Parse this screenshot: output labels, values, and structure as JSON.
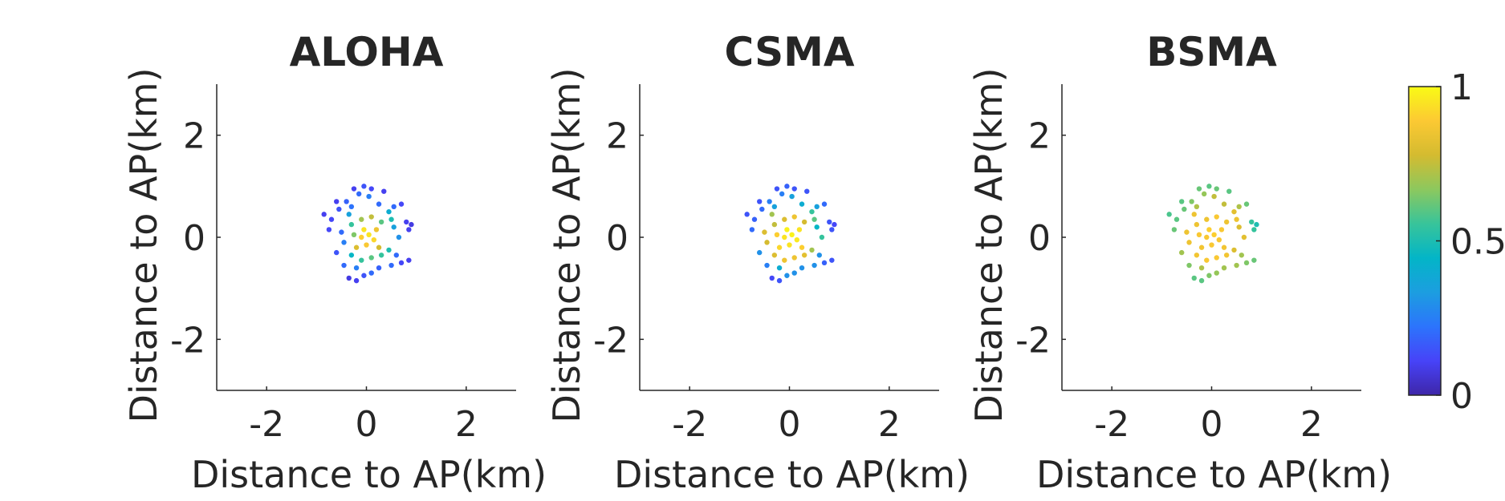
{
  "chart_data": [
    {
      "type": "scatter",
      "title": "ALOHA",
      "xlabel": "Distance to AP(km)",
      "ylabel": "Distance to AP(km)",
      "xlim": [
        -3,
        3
      ],
      "ylim": [
        -3,
        3
      ],
      "xticks": [
        "-2",
        "0",
        "2"
      ],
      "yticks": [
        "-2",
        "0",
        "2"
      ],
      "points": [
        {
          "x": -0.25,
          "y": 0.95,
          "c": 0.1
        },
        {
          "x": -0.05,
          "y": 1.0,
          "c": 0.15
        },
        {
          "x": 0.1,
          "y": 0.95,
          "c": 0.12
        },
        {
          "x": -0.15,
          "y": 0.85,
          "c": 0.2
        },
        {
          "x": 0.05,
          "y": 0.8,
          "c": 0.25
        },
        {
          "x": -0.4,
          "y": 0.7,
          "c": 0.18
        },
        {
          "x": -0.55,
          "y": 0.55,
          "c": 0.15
        },
        {
          "x": -0.85,
          "y": 0.45,
          "c": 0.1
        },
        {
          "x": -0.7,
          "y": 0.35,
          "c": 0.12
        },
        {
          "x": -0.3,
          "y": 0.6,
          "c": 0.22
        },
        {
          "x": 0.25,
          "y": 0.65,
          "c": 0.2
        },
        {
          "x": 0.55,
          "y": 0.6,
          "c": 0.2
        },
        {
          "x": 0.7,
          "y": 0.65,
          "c": 0.12
        },
        {
          "x": 0.45,
          "y": 0.5,
          "c": 0.4
        },
        {
          "x": 0.5,
          "y": 0.35,
          "c": 0.5
        },
        {
          "x": 0.55,
          "y": 0.2,
          "c": 0.35
        },
        {
          "x": 0.8,
          "y": 0.3,
          "c": 0.1
        },
        {
          "x": 0.9,
          "y": 0.25,
          "c": 0.08
        },
        {
          "x": 0.85,
          "y": 0.15,
          "c": 0.1
        },
        {
          "x": -0.1,
          "y": 0.35,
          "c": 0.7
        },
        {
          "x": 0.1,
          "y": 0.4,
          "c": 0.75
        },
        {
          "x": -0.3,
          "y": 0.25,
          "c": 0.55
        },
        {
          "x": 0.3,
          "y": 0.3,
          "c": 0.6
        },
        {
          "x": -0.05,
          "y": 0.15,
          "c": 0.95
        },
        {
          "x": 0.05,
          "y": 0.05,
          "c": 0.95
        },
        {
          "x": -0.1,
          "y": 0.0,
          "c": 0.9
        },
        {
          "x": 0.15,
          "y": -0.05,
          "c": 0.92
        },
        {
          "x": 0.0,
          "y": -0.15,
          "c": 0.88
        },
        {
          "x": -0.2,
          "y": -0.2,
          "c": 0.8
        },
        {
          "x": 0.25,
          "y": -0.2,
          "c": 0.78
        },
        {
          "x": -0.5,
          "y": 0.1,
          "c": 0.2
        },
        {
          "x": -0.45,
          "y": -0.1,
          "c": 0.25
        },
        {
          "x": -0.6,
          "y": -0.3,
          "c": 0.15
        },
        {
          "x": -0.3,
          "y": -0.35,
          "c": 0.45
        },
        {
          "x": -0.1,
          "y": -0.45,
          "c": 0.55
        },
        {
          "x": 0.1,
          "y": -0.4,
          "c": 0.6
        },
        {
          "x": 0.3,
          "y": -0.35,
          "c": 0.55
        },
        {
          "x": 0.45,
          "y": -0.25,
          "c": 0.5
        },
        {
          "x": 0.6,
          "y": -0.35,
          "c": 0.2
        },
        {
          "x": 0.7,
          "y": -0.5,
          "c": 0.12
        },
        {
          "x": 0.85,
          "y": -0.45,
          "c": 0.1
        },
        {
          "x": 0.5,
          "y": -0.55,
          "c": 0.2
        },
        {
          "x": 0.25,
          "y": -0.6,
          "c": 0.18
        },
        {
          "x": 0.1,
          "y": -0.7,
          "c": 0.2
        },
        {
          "x": -0.2,
          "y": -0.6,
          "c": 0.25
        },
        {
          "x": -0.45,
          "y": -0.55,
          "c": 0.2
        },
        {
          "x": -0.35,
          "y": -0.8,
          "c": 0.08
        },
        {
          "x": -0.2,
          "y": -0.85,
          "c": 0.1
        },
        {
          "x": -0.05,
          "y": -0.75,
          "c": 0.15
        },
        {
          "x": -0.6,
          "y": 0.7,
          "c": 0.1
        },
        {
          "x": 0.35,
          "y": 0.9,
          "c": 0.1
        },
        {
          "x": -0.75,
          "y": 0.15,
          "c": 0.12
        },
        {
          "x": 0.65,
          "y": 0.0,
          "c": 0.3
        },
        {
          "x": -0.35,
          "y": 0.45,
          "c": 0.35
        },
        {
          "x": 0.2,
          "y": 0.15,
          "c": 0.85
        },
        {
          "x": -0.25,
          "y": 0.05,
          "c": 0.65
        }
      ]
    },
    {
      "type": "scatter",
      "title": "CSMA",
      "xlabel": "Distance to AP(km)",
      "ylabel": "Distance to AP(km)",
      "xlim": [
        -3,
        3
      ],
      "ylim": [
        -3,
        3
      ],
      "xticks": [
        "-2",
        "0",
        "2"
      ],
      "yticks": [
        "-2",
        "0",
        "2"
      ],
      "points": [
        {
          "x": -0.25,
          "y": 0.95,
          "c": 0.15
        },
        {
          "x": -0.05,
          "y": 1.0,
          "c": 0.18
        },
        {
          "x": 0.1,
          "y": 0.95,
          "c": 0.15
        },
        {
          "x": -0.15,
          "y": 0.85,
          "c": 0.25
        },
        {
          "x": 0.05,
          "y": 0.8,
          "c": 0.35
        },
        {
          "x": -0.4,
          "y": 0.7,
          "c": 0.25
        },
        {
          "x": -0.55,
          "y": 0.55,
          "c": 0.2
        },
        {
          "x": -0.85,
          "y": 0.45,
          "c": 0.15
        },
        {
          "x": -0.7,
          "y": 0.35,
          "c": 0.18
        },
        {
          "x": -0.3,
          "y": 0.6,
          "c": 0.35
        },
        {
          "x": 0.25,
          "y": 0.65,
          "c": 0.4
        },
        {
          "x": 0.55,
          "y": 0.6,
          "c": 0.35
        },
        {
          "x": 0.7,
          "y": 0.65,
          "c": 0.2
        },
        {
          "x": 0.45,
          "y": 0.5,
          "c": 0.55
        },
        {
          "x": 0.5,
          "y": 0.35,
          "c": 0.6
        },
        {
          "x": 0.55,
          "y": 0.2,
          "c": 0.45
        },
        {
          "x": 0.8,
          "y": 0.3,
          "c": 0.15
        },
        {
          "x": 0.9,
          "y": 0.25,
          "c": 0.12
        },
        {
          "x": 0.85,
          "y": 0.15,
          "c": 0.15
        },
        {
          "x": -0.1,
          "y": 0.35,
          "c": 0.8
        },
        {
          "x": 0.1,
          "y": 0.4,
          "c": 0.85
        },
        {
          "x": -0.3,
          "y": 0.25,
          "c": 0.75
        },
        {
          "x": 0.3,
          "y": 0.3,
          "c": 0.78
        },
        {
          "x": -0.05,
          "y": 0.15,
          "c": 0.98
        },
        {
          "x": 0.05,
          "y": 0.05,
          "c": 0.98
        },
        {
          "x": -0.1,
          "y": 0.0,
          "c": 0.95
        },
        {
          "x": 0.15,
          "y": -0.05,
          "c": 0.96
        },
        {
          "x": 0.0,
          "y": -0.15,
          "c": 0.95
        },
        {
          "x": -0.2,
          "y": -0.2,
          "c": 0.92
        },
        {
          "x": 0.25,
          "y": -0.2,
          "c": 0.9
        },
        {
          "x": -0.5,
          "y": 0.1,
          "c": 0.8
        },
        {
          "x": -0.45,
          "y": -0.1,
          "c": 0.78
        },
        {
          "x": -0.6,
          "y": -0.3,
          "c": 0.3
        },
        {
          "x": -0.3,
          "y": -0.35,
          "c": 0.8
        },
        {
          "x": -0.1,
          "y": -0.45,
          "c": 0.85
        },
        {
          "x": 0.1,
          "y": -0.4,
          "c": 0.85
        },
        {
          "x": 0.3,
          "y": -0.35,
          "c": 0.82
        },
        {
          "x": 0.45,
          "y": -0.25,
          "c": 0.7
        },
        {
          "x": 0.6,
          "y": -0.35,
          "c": 0.3
        },
        {
          "x": 0.7,
          "y": -0.5,
          "c": 0.18
        },
        {
          "x": 0.85,
          "y": -0.45,
          "c": 0.15
        },
        {
          "x": 0.5,
          "y": -0.55,
          "c": 0.3
        },
        {
          "x": 0.25,
          "y": -0.6,
          "c": 0.3
        },
        {
          "x": 0.1,
          "y": -0.7,
          "c": 0.3
        },
        {
          "x": -0.2,
          "y": -0.6,
          "c": 0.4
        },
        {
          "x": -0.45,
          "y": -0.55,
          "c": 0.25
        },
        {
          "x": -0.35,
          "y": -0.8,
          "c": 0.12
        },
        {
          "x": -0.2,
          "y": -0.85,
          "c": 0.15
        },
        {
          "x": -0.05,
          "y": -0.75,
          "c": 0.3
        },
        {
          "x": -0.6,
          "y": 0.7,
          "c": 0.15
        },
        {
          "x": 0.35,
          "y": 0.9,
          "c": 0.15
        },
        {
          "x": -0.75,
          "y": 0.15,
          "c": 0.2
        },
        {
          "x": 0.65,
          "y": 0.0,
          "c": 0.55
        },
        {
          "x": -0.35,
          "y": 0.45,
          "c": 0.7
        },
        {
          "x": 0.2,
          "y": 0.15,
          "c": 0.95
        },
        {
          "x": -0.25,
          "y": 0.05,
          "c": 0.9
        }
      ]
    },
    {
      "type": "scatter",
      "title": "BSMA",
      "xlabel": "Distance to AP(km)",
      "ylabel": "Distance to AP(km)",
      "xlim": [
        -3,
        3
      ],
      "ylim": [
        -3,
        3
      ],
      "xticks": [
        "-2",
        "0",
        "2"
      ],
      "yticks": [
        "-2",
        "0",
        "2"
      ],
      "points": [
        {
          "x": -0.25,
          "y": 0.95,
          "c": 0.62
        },
        {
          "x": -0.05,
          "y": 1.0,
          "c": 0.6
        },
        {
          "x": 0.1,
          "y": 0.95,
          "c": 0.62
        },
        {
          "x": -0.15,
          "y": 0.85,
          "c": 0.68
        },
        {
          "x": 0.05,
          "y": 0.8,
          "c": 0.75
        },
        {
          "x": -0.4,
          "y": 0.7,
          "c": 0.65
        },
        {
          "x": -0.55,
          "y": 0.55,
          "c": 0.62
        },
        {
          "x": -0.85,
          "y": 0.45,
          "c": 0.58
        },
        {
          "x": -0.7,
          "y": 0.35,
          "c": 0.6
        },
        {
          "x": -0.3,
          "y": 0.6,
          "c": 0.72
        },
        {
          "x": 0.25,
          "y": 0.65,
          "c": 0.75
        },
        {
          "x": 0.55,
          "y": 0.6,
          "c": 0.72
        },
        {
          "x": 0.7,
          "y": 0.65,
          "c": 0.62
        },
        {
          "x": 0.45,
          "y": 0.5,
          "c": 0.82
        },
        {
          "x": 0.5,
          "y": 0.35,
          "c": 0.85
        },
        {
          "x": 0.55,
          "y": 0.2,
          "c": 0.8
        },
        {
          "x": 0.8,
          "y": 0.3,
          "c": 0.55
        },
        {
          "x": 0.9,
          "y": 0.25,
          "c": 0.5
        },
        {
          "x": 0.85,
          "y": 0.15,
          "c": 0.55
        },
        {
          "x": -0.1,
          "y": 0.35,
          "c": 0.85
        },
        {
          "x": 0.1,
          "y": 0.4,
          "c": 0.88
        },
        {
          "x": -0.3,
          "y": 0.25,
          "c": 0.85
        },
        {
          "x": 0.3,
          "y": 0.3,
          "c": 0.85
        },
        {
          "x": -0.05,
          "y": 0.15,
          "c": 0.9
        },
        {
          "x": 0.05,
          "y": 0.05,
          "c": 0.9
        },
        {
          "x": -0.1,
          "y": 0.0,
          "c": 0.88
        },
        {
          "x": 0.15,
          "y": -0.05,
          "c": 0.88
        },
        {
          "x": 0.0,
          "y": -0.15,
          "c": 0.88
        },
        {
          "x": -0.2,
          "y": -0.2,
          "c": 0.86
        },
        {
          "x": 0.25,
          "y": -0.2,
          "c": 0.86
        },
        {
          "x": -0.5,
          "y": 0.1,
          "c": 0.85
        },
        {
          "x": -0.45,
          "y": -0.1,
          "c": 0.85
        },
        {
          "x": -0.6,
          "y": -0.3,
          "c": 0.7
        },
        {
          "x": -0.3,
          "y": -0.35,
          "c": 0.86
        },
        {
          "x": -0.1,
          "y": -0.45,
          "c": 0.88
        },
        {
          "x": 0.1,
          "y": -0.4,
          "c": 0.88
        },
        {
          "x": 0.3,
          "y": -0.35,
          "c": 0.86
        },
        {
          "x": 0.45,
          "y": -0.25,
          "c": 0.8
        },
        {
          "x": 0.6,
          "y": -0.35,
          "c": 0.7
        },
        {
          "x": 0.7,
          "y": -0.5,
          "c": 0.65
        },
        {
          "x": 0.85,
          "y": -0.45,
          "c": 0.62
        },
        {
          "x": 0.5,
          "y": -0.55,
          "c": 0.7
        },
        {
          "x": 0.25,
          "y": -0.6,
          "c": 0.7
        },
        {
          "x": 0.1,
          "y": -0.7,
          "c": 0.68
        },
        {
          "x": -0.2,
          "y": -0.6,
          "c": 0.72
        },
        {
          "x": -0.45,
          "y": -0.55,
          "c": 0.65
        },
        {
          "x": -0.35,
          "y": -0.8,
          "c": 0.6
        },
        {
          "x": -0.2,
          "y": -0.85,
          "c": 0.6
        },
        {
          "x": -0.05,
          "y": -0.75,
          "c": 0.65
        },
        {
          "x": -0.6,
          "y": 0.7,
          "c": 0.6
        },
        {
          "x": 0.35,
          "y": 0.9,
          "c": 0.6
        },
        {
          "x": -0.75,
          "y": 0.15,
          "c": 0.62
        },
        {
          "x": 0.65,
          "y": 0.0,
          "c": 0.82
        },
        {
          "x": -0.35,
          "y": 0.45,
          "c": 0.85
        },
        {
          "x": 0.2,
          "y": 0.15,
          "c": 0.88
        },
        {
          "x": -0.25,
          "y": 0.05,
          "c": 0.88
        }
      ]
    }
  ],
  "colorbar": {
    "colormap": "parula",
    "clim": [
      0,
      1
    ],
    "ticks": [
      {
        "value": 1,
        "label": "1"
      },
      {
        "value": 0.5,
        "label": "0.5"
      },
      {
        "value": 0,
        "label": "0"
      }
    ],
    "colors": [
      "#3e26a8",
      "#4743f8",
      "#2c74fc",
      "#1c9ee0",
      "#03b5c7",
      "#38c49a",
      "#8cc85e",
      "#d4bb30",
      "#fcc933",
      "#f9fb15"
    ]
  }
}
